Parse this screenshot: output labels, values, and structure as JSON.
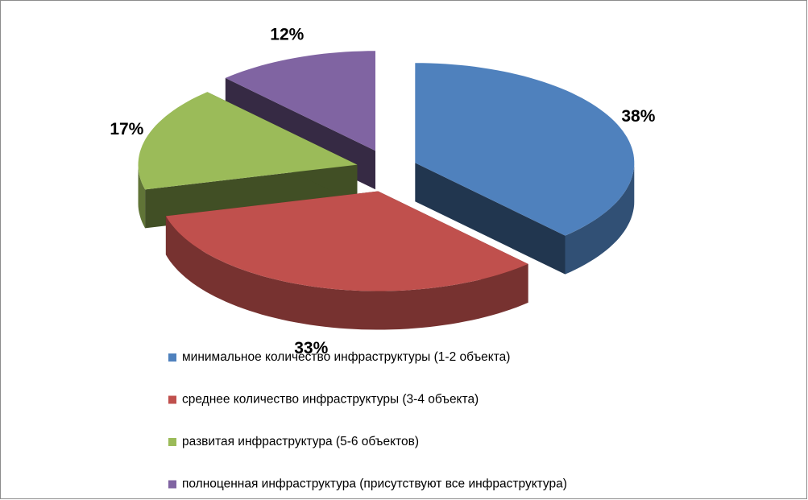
{
  "chart_data": {
    "type": "pie3d",
    "categories": [
      "минимальное количество инфраструктуры (1-2 объекта)",
      "среднее количество инфраструктуры (3-4 объекта)",
      "развитая инфраструктура (5-6 объектов)",
      "полноценная инфраструктура (присутствуют все инфраструктура)"
    ],
    "values": [
      38,
      33,
      17,
      12
    ],
    "value_labels": [
      "38%",
      "33%",
      "17%",
      "12%"
    ],
    "colors": [
      "#4f81bd",
      "#c0504d",
      "#9bbb59",
      "#8064a2"
    ],
    "legend": "bottom"
  }
}
